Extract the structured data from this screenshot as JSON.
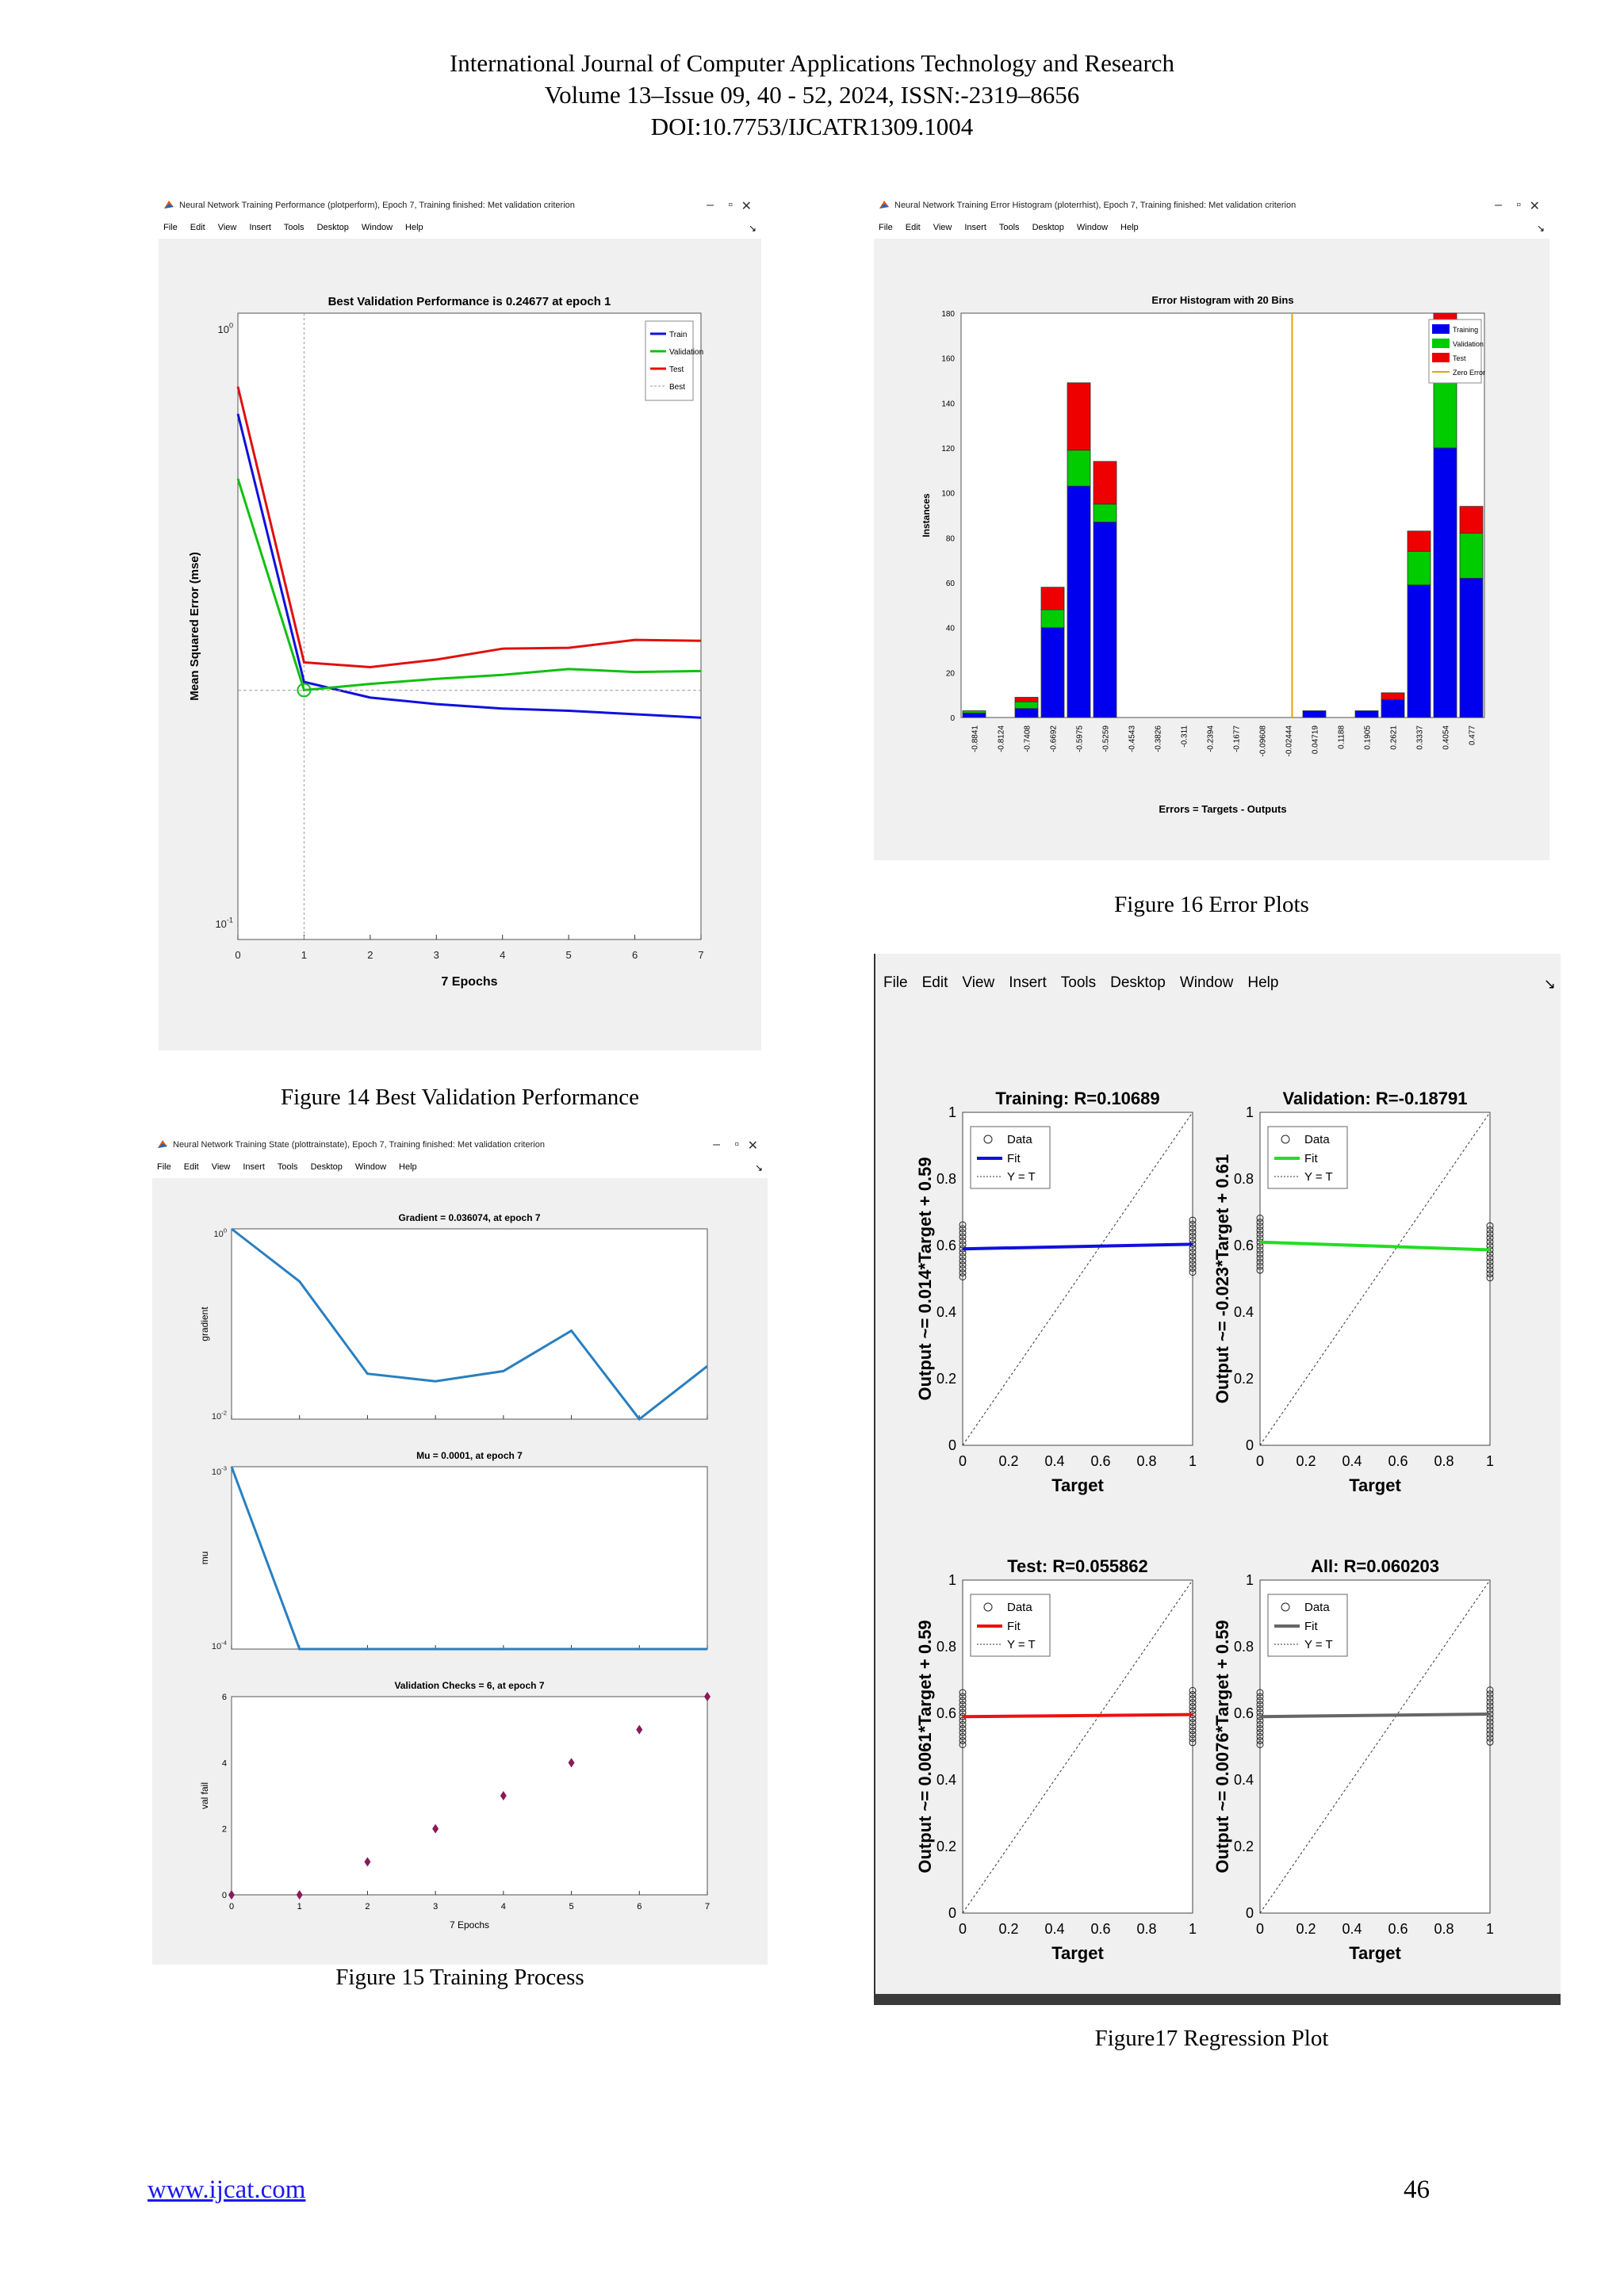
{
  "header": {
    "line1": "International Journal of Computer Applications Technology and Research",
    "line2": "Volume 13–Issue 09, 40 - 52, 2024, ISSN:-2319–8656",
    "line3": "DOI:10.7753/IJCATR1309.1004"
  },
  "menu": [
    "File",
    "Edit",
    "View",
    "Insert",
    "Tools",
    "Desktop",
    "Window",
    "Help"
  ],
  "fig14": {
    "window_title": "Neural Network Training Performance (plotperform), Epoch 7, Training finished: Met validation criterion",
    "caption": "Figure 14 Best Validation Performance",
    "chart_data": {
      "type": "line",
      "title": "Best Validation Performance is 0.24677 at epoch 1",
      "xlabel": "7 Epochs",
      "ylabel": "Mean Squared Error  (mse)",
      "x": [
        0,
        1,
        2,
        3,
        4,
        5,
        6,
        7
      ],
      "xlim": [
        0,
        7
      ],
      "yscale": "log",
      "ylim": [
        0.1,
        1
      ],
      "ytick_labels": [
        "10^0",
        "10^-1"
      ],
      "series": [
        {
          "name": "Train",
          "color": "#1010dd",
          "values": [
            0.72,
            0.255,
            0.24,
            0.234,
            0.23,
            0.228,
            0.225,
            0.222
          ]
        },
        {
          "name": "Validation",
          "color": "#11c011",
          "values": [
            0.56,
            0.247,
            0.253,
            0.258,
            0.262,
            0.268,
            0.265,
            0.266
          ]
        },
        {
          "name": "Test",
          "color": "#e01010",
          "values": [
            0.8,
            0.275,
            0.27,
            0.278,
            0.29,
            0.291,
            0.3,
            0.299
          ]
        },
        {
          "name": "Best",
          "color": "#999999",
          "values": [
            0.24677,
            0.24677,
            0.24677,
            0.24677,
            0.24677,
            0.24677,
            0.24677,
            0.24677
          ]
        }
      ],
      "best_epoch": 1,
      "legend": "top-right"
    }
  },
  "fig15": {
    "window_title": "Neural Network Training State (plottrainstate), Epoch 7, Training finished: Met validation criterion",
    "caption": "Figure 15 Training Process",
    "chart_data": [
      {
        "type": "line",
        "title": "Gradient = 0.036074, at epoch 7",
        "ylabel": "gradient",
        "yscale": "log",
        "ylim": [
          0.01,
          1
        ],
        "ytick_labels": [
          "10^0",
          "10^-2"
        ],
        "x": [
          0,
          1,
          2,
          3,
          4,
          5,
          6,
          7
        ],
        "values": [
          1.0,
          0.28,
          0.03,
          0.025,
          0.032,
          0.085,
          0.01,
          0.036074
        ]
      },
      {
        "type": "line",
        "title": "Mu = 0.0001, at epoch 7",
        "ylabel": "mu",
        "yscale": "log",
        "ylim": [
          0.0001,
          0.001
        ],
        "ytick_labels": [
          "10^-3",
          "10^-4"
        ],
        "x": [
          0,
          1,
          2,
          3,
          4,
          5,
          6,
          7
        ],
        "values": [
          0.001,
          0.0001,
          0.0001,
          0.0001,
          0.0001,
          0.0001,
          0.0001,
          0.0001
        ]
      },
      {
        "type": "scatter",
        "title": "Validation Checks = 6, at epoch 7",
        "ylabel": "val fail",
        "xlabel": "7 Epochs",
        "ylim": [
          0,
          6
        ],
        "yticks": [
          0,
          2,
          4,
          6
        ],
        "x": [
          0,
          1,
          2,
          3,
          4,
          5,
          6,
          7
        ],
        "values": [
          0,
          0,
          1,
          2,
          3,
          4,
          5,
          6
        ]
      }
    ]
  },
  "fig16": {
    "window_title": "Neural Network Training Error Histogram (ploterrhist), Epoch 7, Training finished: Met validation criterion",
    "caption": "Figure 16 Error Plots",
    "chart_data": {
      "type": "bar",
      "stacked": true,
      "title": "Error Histogram with 20 Bins",
      "xlabel": "Errors = Targets - Outputs",
      "ylabel": "Instances",
      "ylim": [
        0,
        180
      ],
      "yticks": [
        0,
        20,
        40,
        60,
        80,
        100,
        120,
        140,
        160,
        180
      ],
      "categories": [
        "-0.8841",
        "-0.8124",
        "-0.7408",
        "-0.6692",
        "-0.5975",
        "-0.5259",
        "-0.4543",
        "-0.3826",
        "-0.311",
        "-0.2394",
        "-0.1677",
        "-0.09608",
        "-0.02444",
        "0.04719",
        "0.1188",
        "0.1905",
        "0.2621",
        "0.3337",
        "0.4054",
        "0.477"
      ],
      "series": [
        {
          "name": "Training",
          "color": "#0000ee",
          "values": [
            2,
            0,
            4,
            40,
            103,
            87,
            0,
            0,
            0,
            0,
            0,
            0,
            0,
            3,
            0,
            3,
            8,
            59,
            120,
            62
          ]
        },
        {
          "name": "Validation",
          "color": "#00cc00",
          "values": [
            1,
            0,
            3,
            8,
            16,
            8,
            0,
            0,
            0,
            0,
            0,
            0,
            0,
            0,
            0,
            0,
            0,
            15,
            32,
            20
          ]
        },
        {
          "name": "Test",
          "color": "#ee0000",
          "values": [
            0,
            0,
            2,
            10,
            30,
            19,
            0,
            0,
            0,
            0,
            0,
            0,
            0,
            0,
            0,
            0,
            3,
            9,
            28,
            12
          ]
        }
      ],
      "zero_error_label": "Zero Error",
      "zero_error_color": "#f0a000",
      "legend": "top-right"
    }
  },
  "fig17": {
    "caption": "Figure17 Regression Plot",
    "legend_labels": [
      "Data",
      "Fit",
      "Y = T"
    ],
    "chart_data": [
      {
        "type": "scatter",
        "title": "Training: R=0.10689",
        "xlabel": "Target",
        "ylabel": "Output ~= 0.014*Target + 0.59",
        "slope": 0.014,
        "intercept": 0.59,
        "fit_color": "#1010dd",
        "xlim": [
          0,
          1
        ],
        "ylim": [
          0,
          1
        ],
        "ticks": [
          "0",
          "0.2",
          "0.4",
          "0.6",
          "0.8",
          "1"
        ]
      },
      {
        "type": "scatter",
        "title": "Validation: R=-0.18791",
        "xlabel": "Target",
        "ylabel": "Output ~= -0.023*Target + 0.61",
        "slope": -0.023,
        "intercept": 0.61,
        "fit_color": "#22dd22",
        "xlim": [
          0,
          1
        ],
        "ylim": [
          0,
          1
        ],
        "ticks": [
          "0",
          "0.2",
          "0.4",
          "0.6",
          "0.8",
          "1"
        ]
      },
      {
        "type": "scatter",
        "title": "Test: R=0.055862",
        "xlabel": "Target",
        "ylabel": "Output ~= 0.0061*Target + 0.59",
        "slope": 0.0061,
        "intercept": 0.59,
        "fit_color": "#ee1111",
        "xlim": [
          0,
          1
        ],
        "ylim": [
          0,
          1
        ],
        "ticks": [
          "0",
          "0.2",
          "0.4",
          "0.6",
          "0.8",
          "1"
        ]
      },
      {
        "type": "scatter",
        "title": "All: R=0.060203",
        "xlabel": "Target",
        "ylabel": "Output ~= 0.0076*Target + 0.59",
        "slope": 0.0076,
        "intercept": 0.59,
        "fit_color": "#666666",
        "xlim": [
          0,
          1
        ],
        "ylim": [
          0,
          1
        ],
        "ticks": [
          "0",
          "0.2",
          "0.4",
          "0.6",
          "0.8",
          "1"
        ]
      }
    ]
  },
  "footer": {
    "link": "www.ijcat.com",
    "page": "46"
  }
}
